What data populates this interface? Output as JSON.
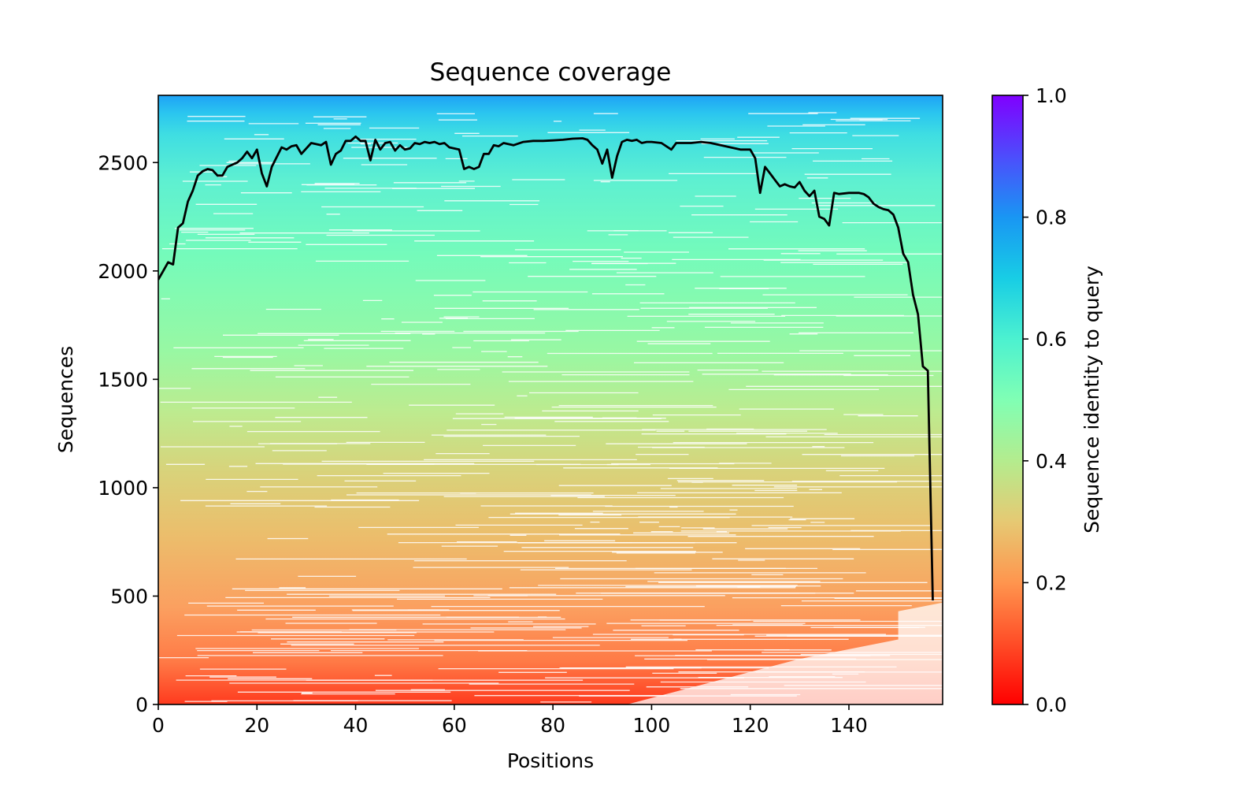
{
  "chart_data": {
    "type": "heatmap",
    "title": "Sequence coverage",
    "xlabel": "Positions",
    "ylabel": "Sequences",
    "xlim": [
      0,
      159
    ],
    "ylim": [
      0,
      2810
    ],
    "xticks": [
      0,
      20,
      40,
      60,
      80,
      100,
      120,
      140
    ],
    "yticks": [
      0,
      500,
      1000,
      1500,
      2000,
      2500
    ],
    "colorbar": {
      "label": "Sequence identity to query",
      "range": [
        0.0,
        1.0
      ],
      "ticks": [
        "0.0",
        "0.2",
        "0.4",
        "0.6",
        "0.8",
        "1.0"
      ],
      "colormap": "rainbow"
    },
    "grid": false,
    "coverage_line": {
      "name": "",
      "color": "#000000",
      "x": [
        0,
        1,
        2,
        3,
        4,
        5,
        6,
        7,
        8,
        9,
        10,
        11,
        12,
        13,
        14,
        15,
        16,
        17,
        18,
        19,
        20,
        21,
        22,
        23,
        25,
        26,
        27,
        28,
        29,
        30,
        31,
        32,
        33,
        34,
        35,
        36,
        37,
        38,
        39,
        40,
        41,
        42,
        43,
        44,
        45,
        46,
        47,
        48,
        49,
        50,
        51,
        52,
        53,
        54,
        55,
        56,
        57,
        58,
        59,
        60,
        61,
        62,
        63,
        64,
        65,
        66,
        67,
        68,
        69,
        70,
        72,
        74,
        76,
        78,
        80,
        82,
        84,
        86,
        87,
        88,
        89,
        90,
        91,
        92,
        93,
        94,
        95,
        96,
        97,
        98,
        99,
        100,
        102,
        104,
        105,
        106,
        108,
        110,
        112,
        114,
        116,
        118,
        119,
        120,
        121,
        122,
        123,
        124,
        125,
        126,
        127,
        128,
        129,
        130,
        131,
        132,
        133,
        134,
        135,
        136,
        137,
        138,
        140,
        142,
        143,
        144,
        145,
        146,
        147,
        148,
        149,
        150,
        151,
        152,
        153,
        154,
        155,
        156,
        157,
        158
      ],
      "y": [
        1960,
        2000,
        2040,
        2030,
        2200,
        2220,
        2320,
        2370,
        2440,
        2460,
        2470,
        2465,
        2440,
        2440,
        2480,
        2490,
        2500,
        2520,
        2550,
        2520,
        2560,
        2450,
        2390,
        2480,
        2570,
        2560,
        2575,
        2580,
        2540,
        2565,
        2590,
        2585,
        2580,
        2595,
        2490,
        2540,
        2555,
        2600,
        2600,
        2620,
        2600,
        2600,
        2510,
        2605,
        2560,
        2590,
        2595,
        2555,
        2580,
        2560,
        2565,
        2590,
        2585,
        2595,
        2590,
        2595,
        2585,
        2590,
        2570,
        2565,
        2560,
        2470,
        2480,
        2470,
        2480,
        2540,
        2540,
        2580,
        2575,
        2590,
        2580,
        2595,
        2600,
        2600,
        2602,
        2605,
        2610,
        2612,
        2605,
        2580,
        2560,
        2495,
        2560,
        2430,
        2530,
        2595,
        2605,
        2600,
        2605,
        2590,
        2595,
        2595,
        2590,
        2560,
        2590,
        2590,
        2590,
        2595,
        2590,
        2580,
        2570,
        2560,
        2560,
        2560,
        2520,
        2360,
        2480,
        2450,
        2420,
        2390,
        2400,
        2390,
        2385,
        2410,
        2370,
        2345,
        2370,
        2250,
        2240,
        2210,
        2360,
        2355,
        2360,
        2360,
        2355,
        2340,
        2310,
        2295,
        2285,
        2280,
        2260,
        2200,
        2080,
        2040,
        1890,
        1800,
        1560,
        1540,
        480
      ]
    }
  }
}
